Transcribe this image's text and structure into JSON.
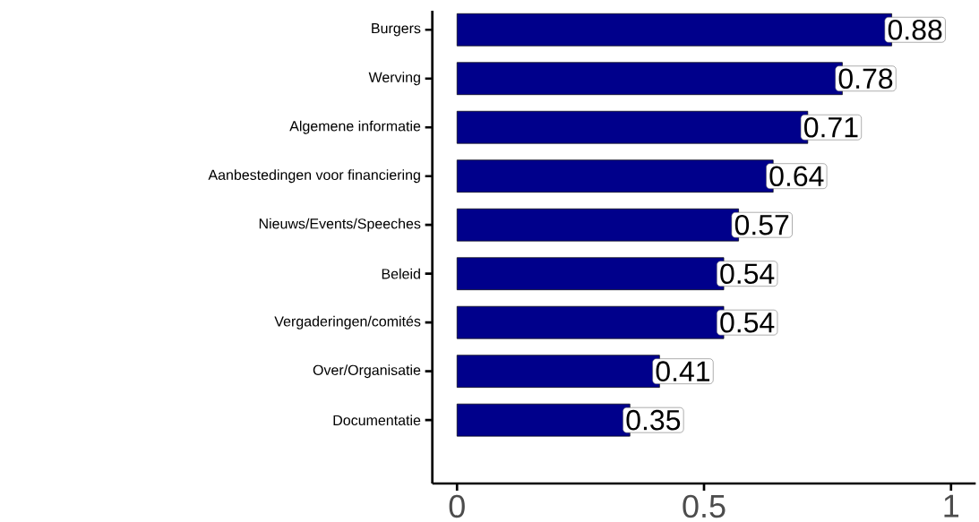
{
  "chart_data": {
    "type": "bar",
    "orientation": "horizontal",
    "categories": [
      "Burgers",
      "Werving",
      "Algemene informatie",
      "Aanbestedingen voor financiering",
      "Nieuws/Events/Speeches",
      "Beleid",
      "Vergaderingen/comités",
      "Over/Organisatie",
      "Documentatie"
    ],
    "values": [
      0.88,
      0.78,
      0.71,
      0.64,
      0.57,
      0.54,
      0.54,
      0.41,
      0.35
    ],
    "color": "#00008b",
    "xlim": [
      -0.05,
      1.05
    ],
    "xticks": [
      0,
      0.5,
      1
    ],
    "data_labels": true,
    "grid": false
  }
}
